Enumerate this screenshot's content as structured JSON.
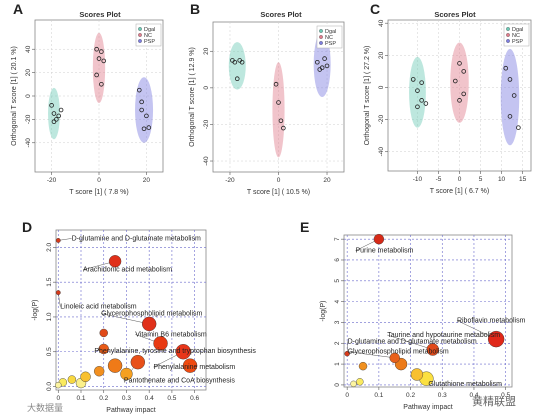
{
  "chart_data": [
    {
      "panel": "A",
      "type": "scatter",
      "title": "Scores Plot",
      "xlabel": "T score [1] ( 7.8 %)",
      "ylabel": "Orthogonal T score [1] ( 20.1 %)",
      "xlim": [
        -27,
        27
      ],
      "ylim": [
        -65,
        65
      ],
      "xticks": [
        -20,
        0,
        20
      ],
      "yticks": [
        -40,
        -20,
        0,
        20,
        40
      ],
      "legend": [
        "Dgal",
        "NC",
        "PSP"
      ],
      "legend_colors": [
        "#6cc9b5",
        "#e07c8c",
        "#7d7de0"
      ],
      "grid": true,
      "series": [
        {
          "name": "Dgal",
          "color": "#6cc9b5",
          "points": [
            [
              -20,
              -8
            ],
            [
              -19,
              -15
            ],
            [
              -18,
              -20
            ],
            [
              -19,
              -22
            ],
            [
              -17,
              -17
            ],
            [
              -16,
              -12
            ]
          ],
          "ellipse": {
            "cx": -19,
            "cy": -15,
            "rx": 2.5,
            "ry": 22
          }
        },
        {
          "name": "NC",
          "color": "#e07c8c",
          "points": [
            [
              -1,
              40
            ],
            [
              1,
              38
            ],
            [
              0,
              32
            ],
            [
              2,
              30
            ],
            [
              -1,
              18
            ],
            [
              1,
              10
            ]
          ],
          "ellipse": {
            "cx": 0,
            "cy": 24,
            "rx": 2.6,
            "ry": 30
          }
        },
        {
          "name": "PSP",
          "color": "#7d7de0",
          "points": [
            [
              17,
              5
            ],
            [
              18,
              -5
            ],
            [
              18,
              -12
            ],
            [
              20,
              -17
            ],
            [
              19,
              -28
            ],
            [
              21,
              -27
            ]
          ],
          "ellipse": {
            "cx": 19,
            "cy": -12,
            "rx": 3.8,
            "ry": 28
          }
        }
      ]
    },
    {
      "panel": "B",
      "type": "scatter",
      "title": "Scores Plot",
      "xlabel": "T score [1] ( 10.5 %)",
      "ylabel": "Orthogonal T score [1] ( 12.9 %)",
      "xlim": [
        -27,
        27
      ],
      "ylim": [
        -46,
        36
      ],
      "xticks": [
        -20,
        0,
        20
      ],
      "yticks": [
        -40,
        -20,
        0,
        20
      ],
      "legend": [
        "Dgal",
        "NC",
        "PSP"
      ],
      "legend_colors": [
        "#6cc9b5",
        "#e07c8c",
        "#7d7de0"
      ],
      "grid": true,
      "series": [
        {
          "name": "Dgal",
          "color": "#6cc9b5",
          "points": [
            [
              -19,
              15
            ],
            [
              -18,
              14
            ],
            [
              -16,
              15
            ],
            [
              -15,
              14
            ],
            [
              -17,
              5
            ]
          ],
          "ellipse": {
            "cx": -17,
            "cy": 12,
            "rx": 3.5,
            "ry": 13
          }
        },
        {
          "name": "NC",
          "color": "#e07c8c",
          "points": [
            [
              -1,
              2
            ],
            [
              0,
              -8
            ],
            [
              1,
              -18
            ],
            [
              2,
              -22
            ]
          ],
          "ellipse": {
            "cx": 0,
            "cy": -12,
            "rx": 2.5,
            "ry": 26
          }
        },
        {
          "name": "PSP",
          "color": "#7d7de0",
          "points": [
            [
              16,
              14
            ],
            [
              17,
              10
            ],
            [
              18,
              11
            ],
            [
              19,
              16
            ],
            [
              20,
              12
            ]
          ],
          "ellipse": {
            "cx": 18,
            "cy": 13,
            "rx": 3.5,
            "ry": 18
          }
        }
      ]
    },
    {
      "panel": "C",
      "type": "scatter",
      "title": "Scores Plot",
      "xlabel": "T score [1] ( 6.7 %)",
      "ylabel": "Orthogonal T score [1] ( 27.2 %)",
      "xlim": [
        -17,
        17
      ],
      "ylim": [
        -52,
        42
      ],
      "xticks": [
        -10,
        -5,
        0,
        5,
        10,
        15
      ],
      "yticks": [
        -40,
        -20,
        0,
        20,
        40
      ],
      "legend": [
        "Dgal",
        "NC",
        "PSP"
      ],
      "legend_colors": [
        "#6cc9b5",
        "#e07c8c",
        "#7d7de0"
      ],
      "grid": true,
      "series": [
        {
          "name": "Dgal",
          "color": "#6cc9b5",
          "points": [
            [
              -11,
              5
            ],
            [
              -10,
              -2
            ],
            [
              -9,
              -8
            ],
            [
              -8,
              -10
            ],
            [
              -9,
              3
            ],
            [
              -10,
              -12
            ]
          ],
          "ellipse": {
            "cx": -10,
            "cy": -3,
            "rx": 2,
            "ry": 22
          }
        },
        {
          "name": "NC",
          "color": "#e07c8c",
          "points": [
            [
              0,
              15
            ],
            [
              1,
              10
            ],
            [
              -1,
              4
            ],
            [
              0,
              -8
            ],
            [
              1,
              -4
            ]
          ],
          "ellipse": {
            "cx": 0,
            "cy": 3,
            "rx": 2.2,
            "ry": 25
          }
        },
        {
          "name": "PSP",
          "color": "#7d7de0",
          "points": [
            [
              11,
              12
            ],
            [
              12,
              5
            ],
            [
              13,
              -5
            ],
            [
              12,
              -18
            ],
            [
              14,
              -25
            ]
          ],
          "ellipse": {
            "cx": 12,
            "cy": -6,
            "rx": 2.2,
            "ry": 30
          }
        }
      ]
    },
    {
      "panel": "D",
      "type": "scatter",
      "xlabel": "Pathway impact",
      "ylabel": "-log(P)",
      "xlim": [
        -0.01,
        0.65
      ],
      "ylim": [
        -0.05,
        2.25
      ],
      "xticks": [
        0.0,
        0.1,
        0.2,
        0.3,
        0.4,
        0.5,
        0.6
      ],
      "yticks": [
        0.0,
        0.5,
        1.0,
        1.5,
        2.0
      ],
      "grid": true,
      "points": [
        {
          "x": 0.0,
          "y": 2.1,
          "r": 2.2,
          "color": "#d63a1a"
        },
        {
          "x": 0.25,
          "y": 1.8,
          "r": 6,
          "color": "#e0301a"
        },
        {
          "x": 0.0,
          "y": 1.35,
          "r": 2.2,
          "color": "#d63a1a"
        },
        {
          "x": 0.4,
          "y": 0.9,
          "r": 7,
          "color": "#e0301a"
        },
        {
          "x": 0.2,
          "y": 0.77,
          "r": 4,
          "color": "#e04a1a"
        },
        {
          "x": 0.45,
          "y": 0.62,
          "r": 7,
          "color": "#e83a12"
        },
        {
          "x": 0.2,
          "y": 0.54,
          "r": 5,
          "color": "#e85a18"
        },
        {
          "x": 0.55,
          "y": 0.5,
          "r": 7.5,
          "color": "#e8361a"
        },
        {
          "x": 0.35,
          "y": 0.35,
          "r": 7,
          "color": "#e8501a"
        },
        {
          "x": 0.58,
          "y": 0.3,
          "r": 7,
          "color": "#ef4a10"
        },
        {
          "x": 0.25,
          "y": 0.3,
          "r": 7,
          "color": "#ef7a18"
        },
        {
          "x": 0.18,
          "y": 0.22,
          "r": 5,
          "color": "#f29020"
        },
        {
          "x": 0.3,
          "y": 0.18,
          "r": 6,
          "color": "#f5a020"
        },
        {
          "x": 0.12,
          "y": 0.14,
          "r": 5,
          "color": "#f8c030"
        },
        {
          "x": 0.06,
          "y": 0.1,
          "r": 4,
          "color": "#f8d840"
        },
        {
          "x": 0.02,
          "y": 0.06,
          "r": 4,
          "color": "#faea60"
        },
        {
          "x": 0.1,
          "y": 0.05,
          "r": 5,
          "color": "#fbf08a"
        },
        {
          "x": 0.0,
          "y": 0.02,
          "r": 3,
          "color": "#fcf4a0"
        }
      ],
      "annotations": [
        {
          "text": "D-glutamine and D-glutamate metabolism",
          "x": 0.0,
          "y": 2.1,
          "lx": 0.05,
          "ly": 2.1
        },
        {
          "text": "Arachidonic acid metabolism",
          "x": 0.25,
          "y": 1.8,
          "lx": 0.1,
          "ly": 1.65
        },
        {
          "text": "Linoleic acid metabolism",
          "x": 0.0,
          "y": 1.35,
          "lx": 0.0,
          "ly": 1.12
        },
        {
          "text": "Glycerophospholipid metabolism",
          "x": 0.4,
          "y": 0.9,
          "lx": 0.18,
          "ly": 1.02
        },
        {
          "text": "Vitamin B6 metabolism",
          "x": 0.45,
          "y": 0.62,
          "lx": 0.33,
          "ly": 0.72
        },
        {
          "text": "Phenylalanine, tyrosine and tryptophan biosynthesis",
          "x": 0.2,
          "y": 0.54,
          "lx": 0.15,
          "ly": 0.48
        },
        {
          "text": "Phenylalanine metabolism",
          "x": 0.55,
          "y": 0.5,
          "lx": 0.41,
          "ly": 0.25
        },
        {
          "text": "Pantothenate and CoA biosynthesis",
          "x": 0.35,
          "y": 0.35,
          "lx": 0.28,
          "ly": 0.06
        }
      ]
    },
    {
      "panel": "E",
      "type": "scatter",
      "xlabel": "Pathway impact",
      "ylabel": "-log(P)",
      "xlim": [
        -0.01,
        0.52
      ],
      "ylim": [
        -0.1,
        7.2
      ],
      "xticks": [
        0.0,
        0.1,
        0.2,
        0.3,
        0.4,
        0.5
      ],
      "yticks": [
        0,
        1,
        2,
        3,
        4,
        5,
        6,
        7
      ],
      "grid": true,
      "points": [
        {
          "x": 0.1,
          "y": 7.0,
          "r": 5,
          "color": "#d62a18"
        },
        {
          "x": 0.47,
          "y": 2.2,
          "r": 8,
          "color": "#e0281a"
        },
        {
          "x": 0.27,
          "y": 1.7,
          "r": 6,
          "color": "#e24a1a"
        },
        {
          "x": 0.0,
          "y": 1.5,
          "r": 2.5,
          "color": "#d63a1a"
        },
        {
          "x": 0.15,
          "y": 1.3,
          "r": 5,
          "color": "#e8601a"
        },
        {
          "x": 0.17,
          "y": 1.0,
          "r": 6,
          "color": "#ec7a18"
        },
        {
          "x": 0.05,
          "y": 0.9,
          "r": 4,
          "color": "#f09020"
        },
        {
          "x": 0.22,
          "y": 0.5,
          "r": 6,
          "color": "#f8c030"
        },
        {
          "x": 0.25,
          "y": 0.3,
          "r": 7,
          "color": "#fbe040"
        },
        {
          "x": 0.04,
          "y": 0.15,
          "r": 3.5,
          "color": "#faea60"
        },
        {
          "x": 0.02,
          "y": 0.05,
          "r": 3,
          "color": "#fcf4a0"
        }
      ],
      "annotations": [
        {
          "text": "Purine metabolism",
          "x": 0.1,
          "y": 7.0,
          "lx": 0.02,
          "ly": 6.35
        },
        {
          "text": "Riboflavin metabolism",
          "x": 0.47,
          "y": 2.2,
          "lx": 0.34,
          "ly": 3.0
        },
        {
          "text": "Taurine and hypotaurine metabolism",
          "x": 0.27,
          "y": 1.7,
          "lx": 0.12,
          "ly": 2.3
        },
        {
          "text": "D-glutamine and D-glutamate metabolism",
          "x": 0.0,
          "y": 1.5,
          "lx": -0.005,
          "ly": 2.0
        },
        {
          "text": "Glycerophospholipid metabolism",
          "x": 0.15,
          "y": 1.3,
          "lx": -0.005,
          "ly": 1.5
        },
        {
          "text": "Glutathione metabolism",
          "x": 0.25,
          "y": 0.3,
          "lx": 0.25,
          "ly": -0.05
        }
      ]
    }
  ],
  "watermarks": {
    "left": "大数据量",
    "right": "黄精联盟"
  }
}
